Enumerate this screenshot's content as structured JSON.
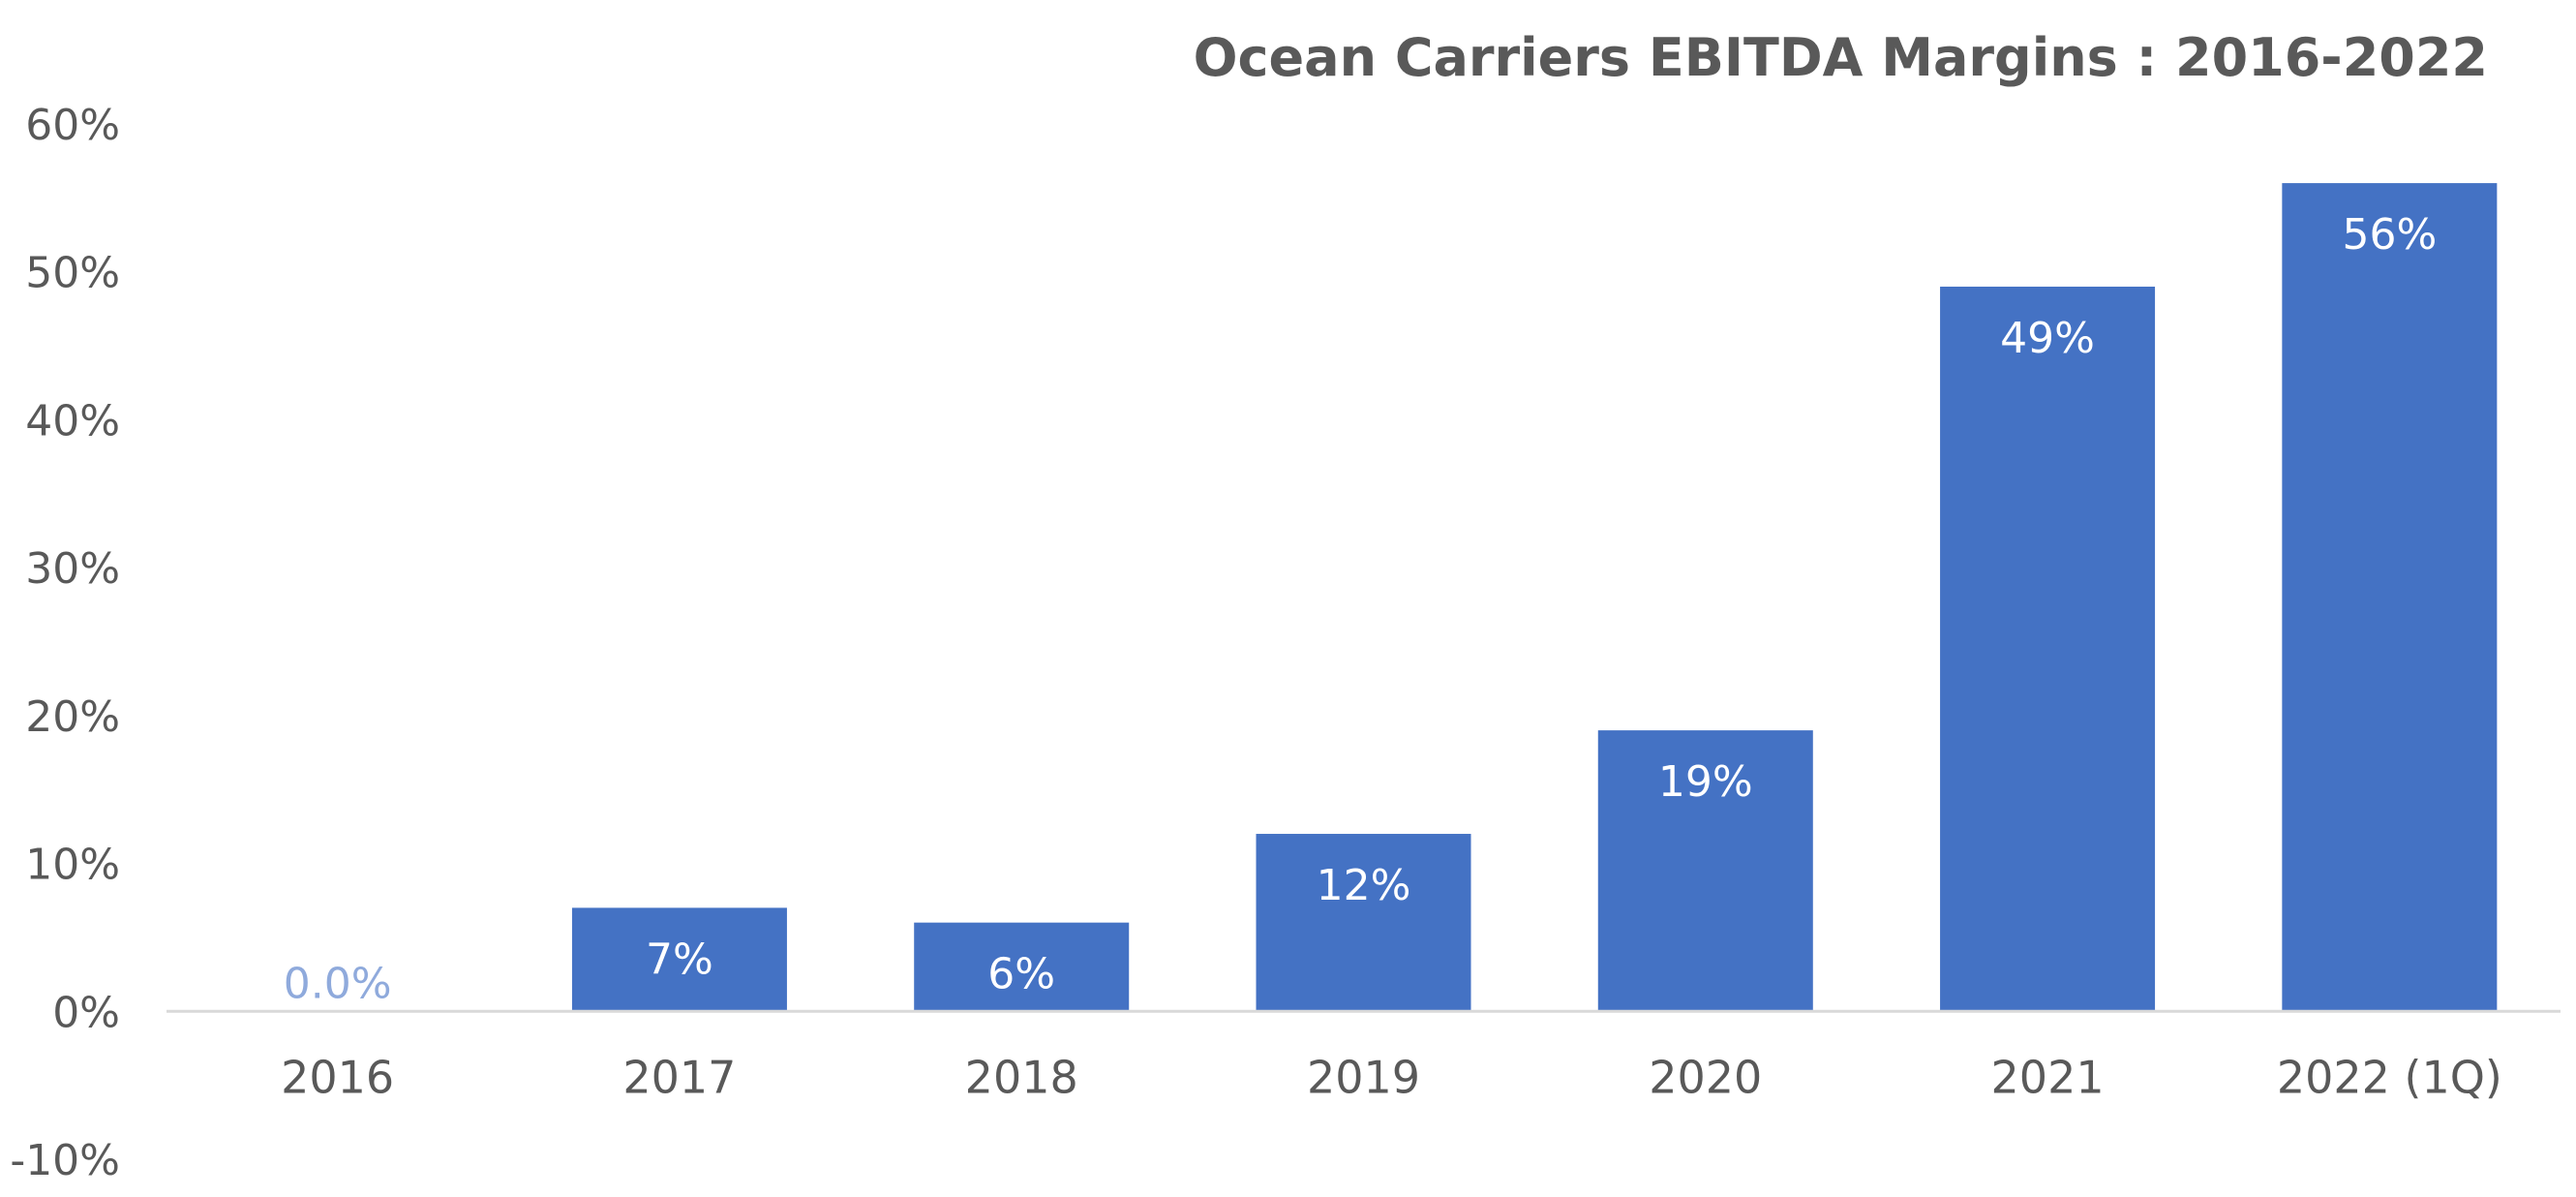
{
  "chart_data": {
    "type": "bar",
    "title": "Ocean Carriers EBITDA Margins : 2016-2022",
    "categories": [
      "2016",
      "2017",
      "2018",
      "2019",
      "2020",
      "2021",
      "2022 (1Q)"
    ],
    "values": [
      0.0,
      7,
      6,
      12,
      19,
      49,
      56
    ],
    "data_labels": [
      "0.0%",
      "7%",
      "6%",
      "12%",
      "19%",
      "49%",
      "56%"
    ],
    "value_unit": "%",
    "ylim": [
      -10,
      60
    ],
    "yticks": [
      60,
      50,
      40,
      30,
      20,
      10,
      0,
      -10
    ],
    "ytick_labels": [
      "60%",
      "50%",
      "40%",
      "30%",
      "20%",
      "10%",
      "0%",
      "-10%"
    ],
    "xlabel": "",
    "ylabel": "",
    "grid": false,
    "legend": "none",
    "colors": {
      "bar": "#4472c4",
      "axis": "#d9d9d9",
      "text": "#595959",
      "label_inside": "#ffffff",
      "label_zero": "#8faadc"
    }
  }
}
